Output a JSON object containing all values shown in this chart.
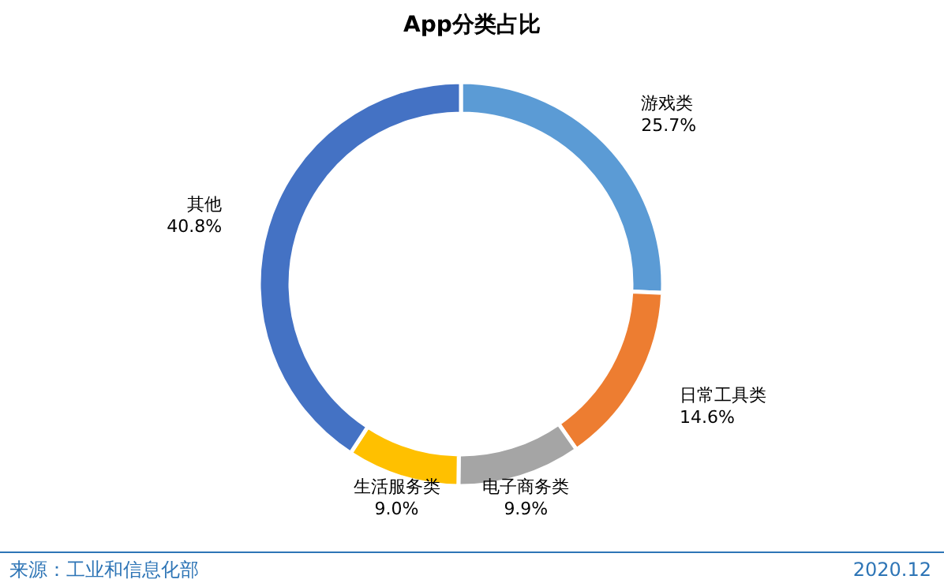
{
  "chart_data": {
    "type": "donut",
    "title": "App分类占比",
    "categories": [
      "游戏类",
      "日常工具类",
      "电子商务类",
      "生活服务类",
      "其他"
    ],
    "values": [
      25.7,
      14.6,
      9.9,
      9.0,
      40.8
    ],
    "colors": [
      "#5b9bd5",
      "#ed7d31",
      "#a5a5a5",
      "#ffc000",
      "#4472c4"
    ],
    "value_labels": [
      "25.7%",
      "14.6%",
      "9.9%",
      "9.0%",
      "40.8%"
    ],
    "annotations": [
      "来源：工业和信息化部",
      "2020.12"
    ]
  }
}
